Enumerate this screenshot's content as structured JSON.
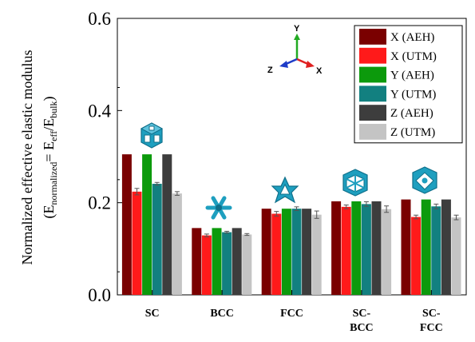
{
  "chart_data": {
    "type": "bar",
    "ylabel_line1": "Normalized effective elastic modulus",
    "ylabel_line2": {
      "open": "(E",
      "sub1": "normalized",
      "mid": "= E",
      "sub2": "eff",
      "slash": "/E",
      "sub3": "bulk",
      "close": ")"
    },
    "ylim": [
      0.0,
      0.6
    ],
    "yticks": [
      0.0,
      0.2,
      0.4,
      0.6
    ],
    "ytick_labels": [
      "0.0",
      "0.2",
      "0.4",
      "0.6"
    ],
    "categories": [
      {
        "lines": [
          "SC"
        ]
      },
      {
        "lines": [
          "BCC"
        ]
      },
      {
        "lines": [
          "FCC"
        ]
      },
      {
        "lines": [
          "SC-",
          "BCC"
        ]
      },
      {
        "lines": [
          "SC-",
          "FCC"
        ]
      }
    ],
    "series": [
      {
        "name": "X (AEH)",
        "color": "#7a0000",
        "values": [
          0.305,
          0.145,
          0.187,
          0.203,
          0.207
        ],
        "errors": [
          0,
          0,
          0,
          0,
          0
        ]
      },
      {
        "name": "X (UTM)",
        "color": "#ff1a1a",
        "values": [
          0.224,
          0.129,
          0.176,
          0.191,
          0.169
        ],
        "errors": [
          0.007,
          0.003,
          0.005,
          0.004,
          0.004
        ]
      },
      {
        "name": "Y (AEH)",
        "color": "#0c9a0c",
        "values": [
          0.305,
          0.145,
          0.187,
          0.203,
          0.207
        ],
        "errors": [
          0,
          0,
          0,
          0,
          0
        ]
      },
      {
        "name": "Y (UTM)",
        "color": "#128080",
        "values": [
          0.241,
          0.136,
          0.187,
          0.197,
          0.192
        ],
        "errors": [
          0.003,
          0.002,
          0.004,
          0.005,
          0.005
        ]
      },
      {
        "name": "Z (AEH)",
        "color": "#3d3d3d",
        "values": [
          0.305,
          0.145,
          0.187,
          0.203,
          0.207
        ],
        "errors": [
          0,
          0,
          0,
          0,
          0
        ]
      },
      {
        "name": "Z (UTM)",
        "color": "#c4c4c4",
        "values": [
          0.22,
          0.131,
          0.174,
          0.186,
          0.168
        ],
        "errors": [
          0.004,
          0.002,
          0.008,
          0.007,
          0.005
        ]
      }
    ],
    "legend_position": "top-right",
    "axes_triad": {
      "y": "Y",
      "z": "Z",
      "x": "X"
    },
    "unit_cell_icons": [
      "simple-cubic-cell-icon",
      "bcc-cell-icon",
      "fcc-cell-icon",
      "sc-bcc-cell-icon",
      "sc-fcc-cell-icon"
    ],
    "colors": {
      "icon": "#1e9fbf",
      "icon_dark": "#0f6f8a",
      "triad_x": "#e02020",
      "triad_y": "#22aa22",
      "triad_z": "#1e3cc8"
    }
  }
}
